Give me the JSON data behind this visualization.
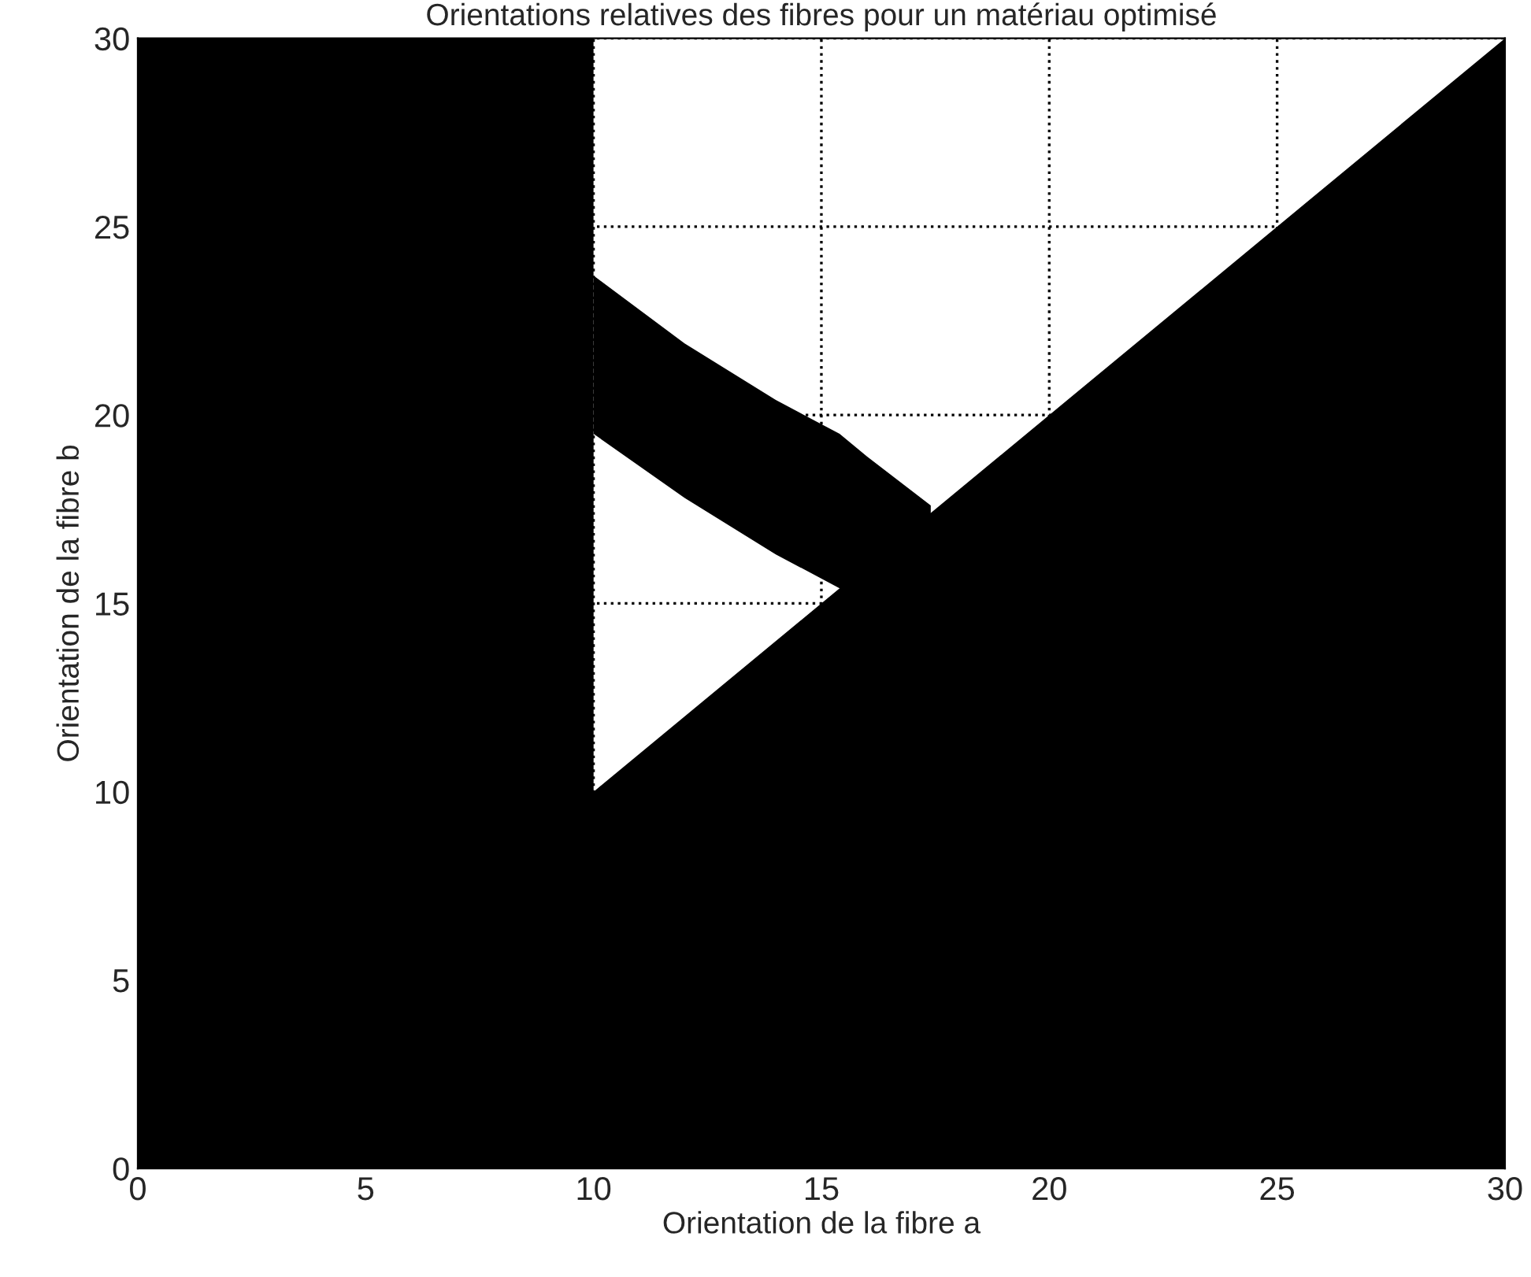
{
  "chart_data": {
    "type": "area",
    "title": "Orientations relatives des fibres pour un matériau optimisé",
    "xlabel": "Orientation de la fibre a",
    "ylabel": "Orientation de la fibre b",
    "series": [
      {
        "color": "#000000",
        "x": [
          10,
          12,
          14,
          15.4,
          16,
          17.4
        ],
        "values": [
          23.7,
          21.9,
          20.4,
          19.5,
          18.9,
          17.6
        ]
      },
      {
        "color": "#ffffff",
        "x": [
          10,
          12,
          14,
          15.4
        ],
        "values": [
          19.5,
          17.8,
          16.3,
          15.4
        ]
      },
      {
        "color": "#000000",
        "x": [
          0,
          10,
          10,
          30
        ],
        "values": [
          30,
          30,
          10,
          30
        ]
      }
    ],
    "xlim": [
      0,
      30
    ],
    "ylim": [
      0,
      30
    ],
    "xticks": [
      0,
      5,
      10,
      15,
      20,
      25,
      30
    ],
    "yticks": [
      0,
      5,
      10,
      15,
      20,
      25,
      30
    ],
    "grid": true,
    "line_style": "dotted"
  }
}
